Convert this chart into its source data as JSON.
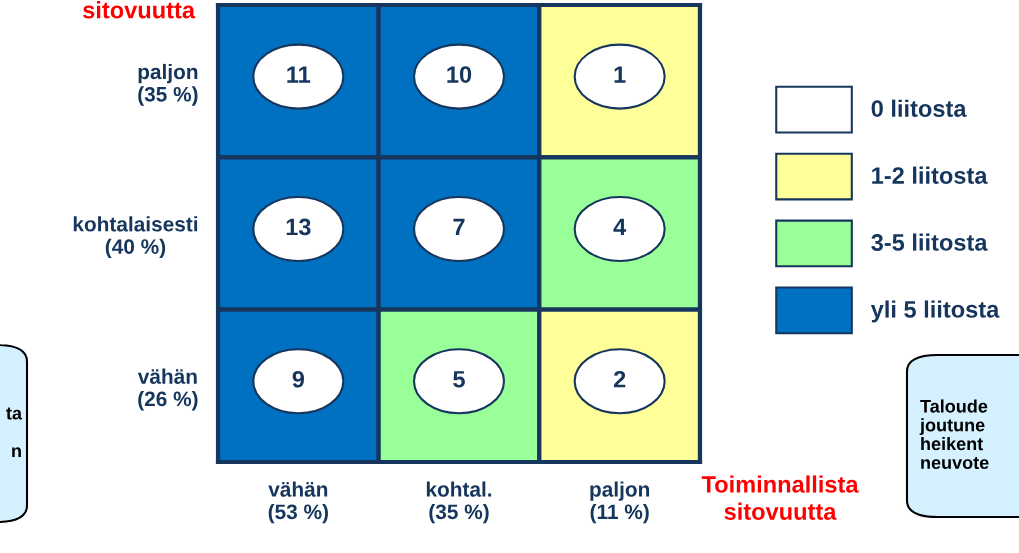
{
  "chart_data": {
    "type": "heatmap",
    "xlabel": "Toiminnallista\nsitovuutta",
    "ylabel": "sitovuutta",
    "categories": [
      "vähän\n(53 %)",
      "kohtal.\n(35 %)",
      "paljon\n(11 %)"
    ],
    "y_categories": [
      "paljon\n(35 %)",
      "kohtalaisesti\n(40 %)",
      "vähän\n(26 %)"
    ],
    "cells": [
      [
        11,
        10,
        1
      ],
      [
        13,
        7,
        4
      ],
      [
        9,
        5,
        2
      ]
    ],
    "colors": [
      [
        "#0070c0",
        "#0070c0",
        "#ffff99"
      ],
      [
        "#0070c0",
        "#0070c0",
        "#99ff99"
      ],
      [
        "#0070c0",
        "#99ff99",
        "#ffff99"
      ]
    ],
    "series": [
      {
        "name": "0 liitosta",
        "color": "#ffffff",
        "values": [
          null,
          null,
          null
        ]
      },
      {
        "name": "1-2 liitosta",
        "color": "#ffff99",
        "values": [
          null,
          null,
          null
        ]
      },
      {
        "name": "3-5 liitosta",
        "color": "#99ff99",
        "values": [
          null,
          null,
          null
        ]
      },
      {
        "name": "yli 5 liitosta",
        "color": "#0070c0",
        "values": [
          null,
          null,
          null
        ]
      }
    ],
    "legend": "right",
    "data_labels": true,
    "annotations": [
      "ta\n\nn",
      "Taloude\njoutune\nheikent\nneuvote"
    ]
  }
}
